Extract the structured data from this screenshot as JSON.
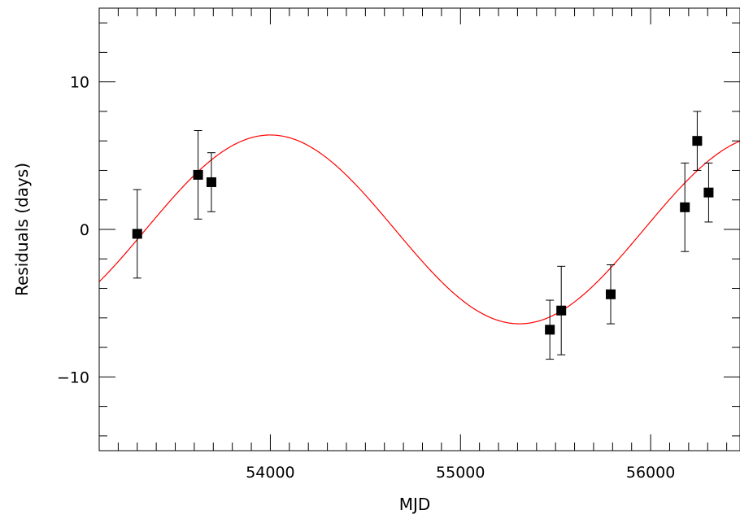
{
  "chart_data": {
    "type": "scatter",
    "xlabel": "MJD",
    "ylabel": "Residuals  (days)",
    "xlim": [
      53100,
      56470
    ],
    "ylim": [
      -15,
      15
    ],
    "xticks": [
      {
        "value": 54000,
        "label": "54000"
      },
      {
        "value": 55000,
        "label": "55000"
      },
      {
        "value": 56000,
        "label": "56000"
      }
    ],
    "yticks": [
      {
        "value": 10,
        "label": "10"
      },
      {
        "value": 0,
        "label": "0"
      },
      {
        "value": -10,
        "label": "−10"
      }
    ],
    "x_minor_step": 100,
    "x_major_step": 1000,
    "y_minor_step": 2,
    "y_major_step": 10,
    "grid": false,
    "legend": "none",
    "series": [
      {
        "kind": "scatter-with-errorbars",
        "marker": "square",
        "color": "#000000",
        "points": [
          {
            "x": 53300,
            "y": -0.3,
            "err": 3.0
          },
          {
            "x": 53620,
            "y": 3.7,
            "err": 3.0
          },
          {
            "x": 53690,
            "y": 3.2,
            "err": 2.0
          },
          {
            "x": 55470,
            "y": -6.8,
            "err": 2.0
          },
          {
            "x": 55530,
            "y": -5.5,
            "err": 3.0
          },
          {
            "x": 55790,
            "y": -4.4,
            "err": 2.0
          },
          {
            "x": 56180,
            "y": 1.5,
            "err": 3.0
          },
          {
            "x": 56245,
            "y": 6.0,
            "err": 2.0
          },
          {
            "x": 56305,
            "y": 2.5,
            "err": 2.0
          }
        ]
      },
      {
        "kind": "sinusoid-fit",
        "color": "#ff0000",
        "amplitude": 6.4,
        "period": 2620,
        "peak_x": 54000
      }
    ]
  }
}
